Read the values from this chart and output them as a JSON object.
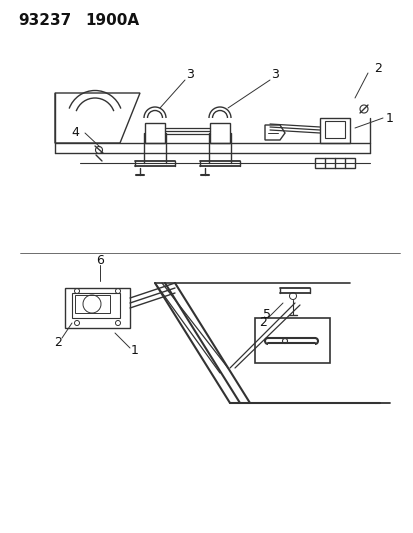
{
  "title_part": "93237",
  "title_code": "1900A",
  "bg_color": "#ffffff",
  "line_color": "#333333",
  "text_color": "#111111",
  "label_fontsize": 9,
  "title_fontsize": 11,
  "fig_width": 4.14,
  "fig_height": 5.33,
  "dpi": 100
}
